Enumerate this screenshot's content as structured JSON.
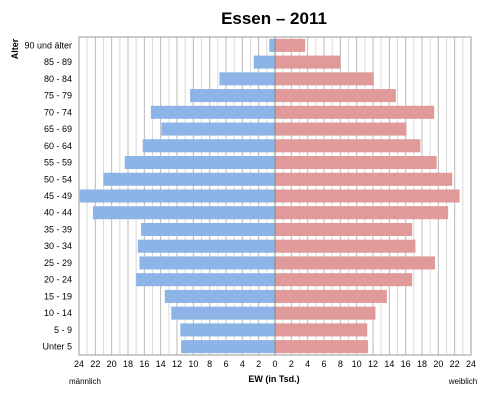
{
  "chart_data": {
    "type": "bar",
    "orientation": "horizontal",
    "title": "Essen – 2011",
    "ylabel": "Alter",
    "xlabel": "EW (in Tsd.)",
    "left_label": "männlich",
    "right_label": "weiblich",
    "xlim": [
      -24,
      24
    ],
    "xticks": [
      "24",
      "22",
      "20",
      "18",
      "16",
      "14",
      "12",
      "10",
      "8",
      "6",
      "4",
      "2",
      "0",
      "2",
      "4",
      "6",
      "8",
      "10",
      "12",
      "14",
      "16",
      "18",
      "20",
      "22",
      "24"
    ],
    "grid": true,
    "categories": [
      "90 und älter",
      "85 - 89",
      "80 - 84",
      "75 - 79",
      "70 - 74",
      "65 - 69",
      "60 - 64",
      "55 - 59",
      "50 - 54",
      "45 - 49",
      "40 - 44",
      "35 - 39",
      "30 - 34",
      "25 - 29",
      "20 - 24",
      "15 - 19",
      "10 - 14",
      "5 - 9",
      "Unter 5"
    ],
    "series": [
      {
        "name": "männlich",
        "color": "#8cb4e6",
        "values": [
          0.7,
          2.6,
          6.8,
          10.4,
          15.2,
          13.9,
          16.2,
          18.4,
          21.0,
          23.9,
          22.3,
          16.4,
          16.8,
          16.6,
          17.0,
          13.5,
          12.7,
          11.6,
          11.5
        ]
      },
      {
        "name": "weiblich",
        "color": "#e09a9a",
        "values": [
          3.7,
          8.0,
          12.1,
          14.8,
          19.5,
          16.1,
          17.8,
          19.8,
          21.7,
          22.6,
          21.2,
          16.8,
          17.2,
          19.6,
          16.8,
          13.7,
          12.3,
          11.3,
          11.4
        ]
      }
    ]
  }
}
